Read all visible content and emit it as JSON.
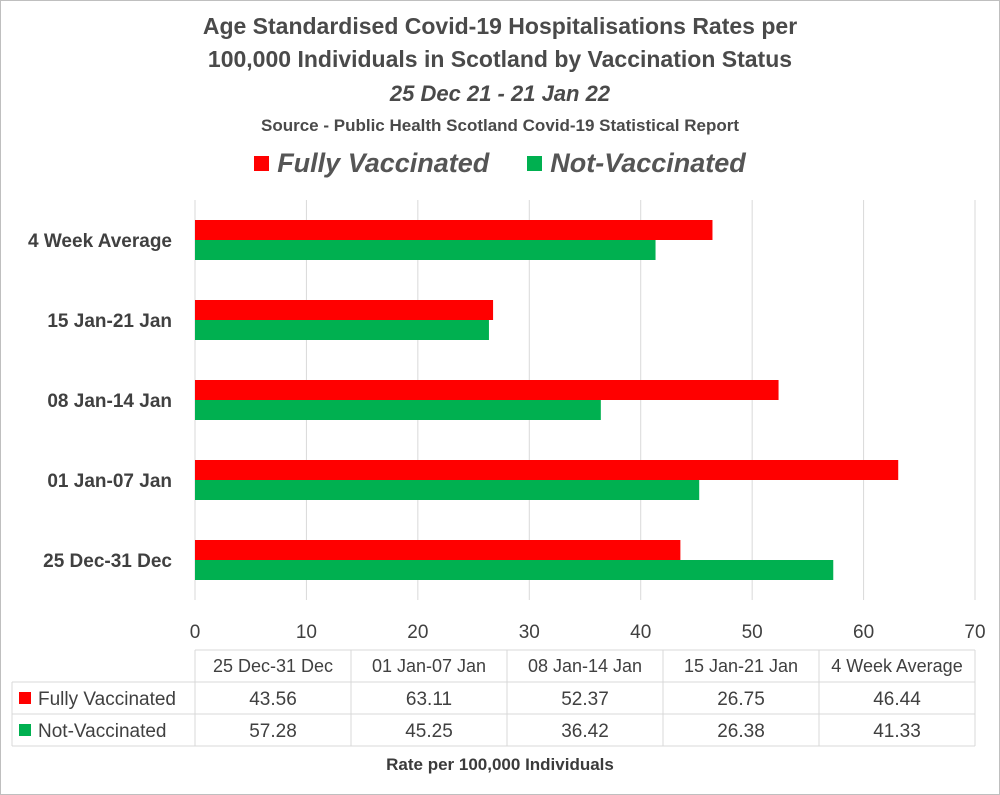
{
  "title_line1": "Age Standardised Covid-19 Hospitalisations Rates per",
  "title_line2": "100,000 Individuals in Scotland by Vaccination Status",
  "date_range": "25 Dec 21 - 21 Jan 22",
  "source": "Source - Public Health Scotland Covid-19 Statistical Report",
  "colors": {
    "fully": "#ff0000",
    "not": "#00b050",
    "grid": "#d9d9d9"
  },
  "chart_data": {
    "type": "bar",
    "orientation": "horizontal",
    "categories": [
      "25 Dec-31 Dec",
      "01 Jan-07 Jan",
      "08 Jan-14 Jan",
      "15 Jan-21 Jan",
      "4 Week Average"
    ],
    "series": [
      {
        "name": "Fully Vaccinated",
        "values": [
          43.56,
          63.11,
          52.37,
          26.75,
          46.44
        ]
      },
      {
        "name": "Not-Vaccinated",
        "values": [
          57.28,
          45.25,
          36.42,
          26.38,
          41.33
        ]
      }
    ],
    "xlim": [
      0,
      70
    ],
    "xticks": [
      0,
      10,
      20,
      30,
      40,
      50,
      60,
      70
    ],
    "xlabel": "Rate per 100,000 Individuals",
    "legend": "top",
    "grid": true,
    "data_table": true
  }
}
